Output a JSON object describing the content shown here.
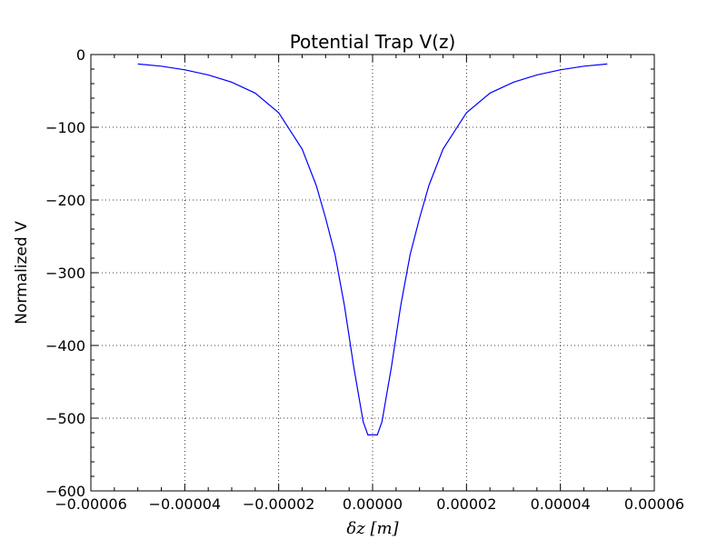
{
  "chart_data": {
    "type": "line",
    "title": "Potential Trap V(z)",
    "xlabel": "δz [m]",
    "ylabel": "Normalized V",
    "xlim": [
      -6e-05,
      6e-05
    ],
    "ylim": [
      -600,
      0
    ],
    "xticks": [
      -6e-05,
      -4e-05,
      -2e-05,
      0.0,
      2e-05,
      4e-05,
      6e-05
    ],
    "xtick_labels": [
      "−0.00006",
      "−0.00004",
      "−0.00002",
      "0.00000",
      "0.00002",
      "0.00004",
      "0.00006"
    ],
    "yticks": [
      -600,
      -500,
      -400,
      -300,
      -200,
      -100,
      0
    ],
    "ytick_labels": [
      "−600",
      "−500",
      "−400",
      "−300",
      "−200",
      "−100",
      "0"
    ],
    "grid": true,
    "series": [
      {
        "color": "#0000ff",
        "x": [
          -5e-05,
          -4.5e-05,
          -4e-05,
          -3.5e-05,
          -3e-05,
          -2.5e-05,
          -2e-05,
          -1.5e-05,
          -1.2e-05,
          -1e-05,
          -8e-06,
          -6e-06,
          -4e-06,
          -2e-06,
          -1e-06,
          0.0,
          1e-06,
          2e-06,
          4e-06,
          6e-06,
          8e-06,
          1e-05,
          1.2e-05,
          1.5e-05,
          2e-05,
          2.5e-05,
          3e-05,
          3.5e-05,
          4e-05,
          4.5e-05,
          5e-05
        ],
        "y": [
          -13,
          -16,
          -21,
          -28,
          -38,
          -53,
          -80,
          -130,
          -180,
          -225,
          -275,
          -345,
          -430,
          -505,
          -523,
          -523,
          -523,
          -505,
          -430,
          -345,
          -275,
          -225,
          -180,
          -130,
          -80,
          -53,
          -38,
          -28,
          -21,
          -16,
          -13
        ]
      }
    ]
  }
}
